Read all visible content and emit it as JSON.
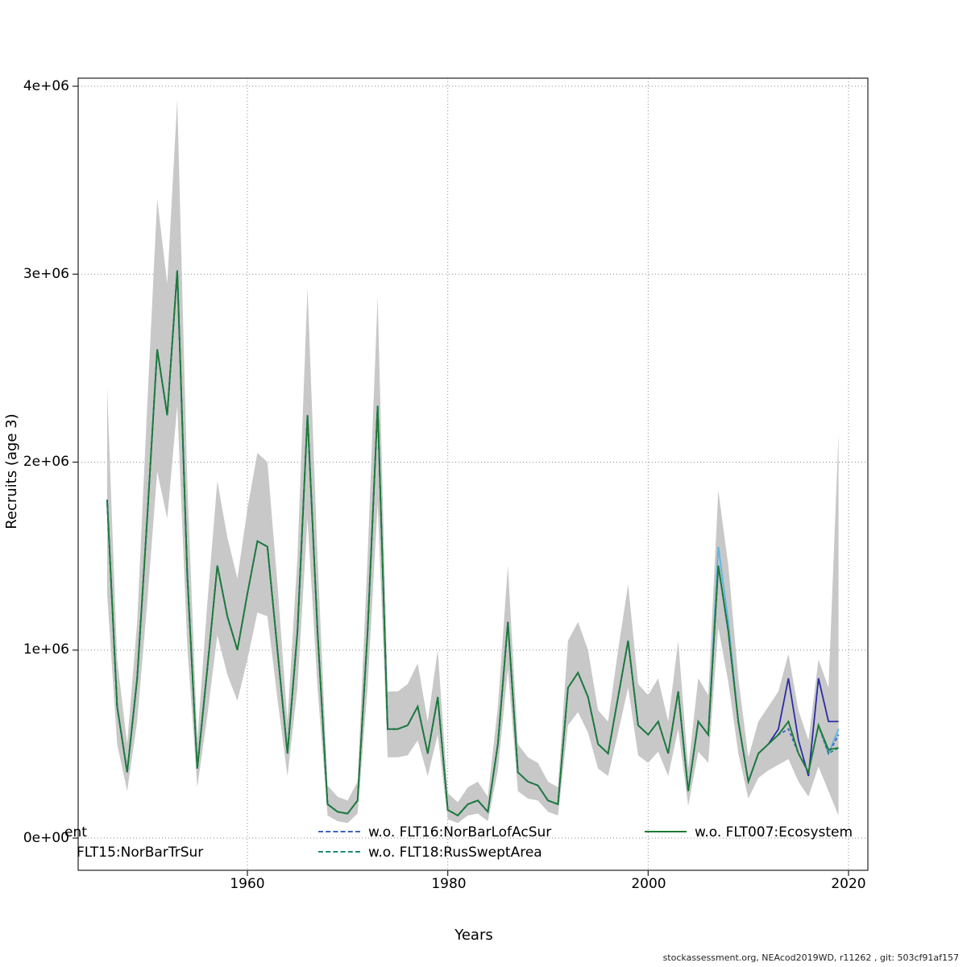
{
  "footer": {
    "text": "stockassessment.org, NEAcod2019WD, r11262 , git: 503cf91af157"
  },
  "chart_data": {
    "type": "line",
    "title": "",
    "xlabel": "Years",
    "ylabel": "Recruits (age 3)",
    "x_ticks": [
      1960,
      1980,
      2000,
      2020
    ],
    "x_tick_labels": [
      "1960",
      "1980",
      "2000",
      "2020"
    ],
    "y_tick_values": [
      4,
      3,
      2,
      1,
      0
    ],
    "y_tick_labels": [
      "4e+06",
      "3e+06",
      "2e+06",
      "1e+06",
      "0e+00"
    ],
    "value_scale": 1000000,
    "xlim": [
      1943,
      2022
    ],
    "ylim": [
      0,
      4.2
    ],
    "grid": true,
    "band_color": "#c8c8c8",
    "years": [
      1946,
      1947,
      1948,
      1949,
      1950,
      1951,
      1952,
      1953,
      1954,
      1955,
      1956,
      1957,
      1958,
      1959,
      1960,
      1961,
      1962,
      1963,
      1964,
      1965,
      1966,
      1967,
      1968,
      1969,
      1970,
      1971,
      1972,
      1973,
      1974,
      1975,
      1976,
      1977,
      1978,
      1979,
      1980,
      1981,
      1982,
      1983,
      1984,
      1985,
      1986,
      1987,
      1988,
      1989,
      1990,
      1991,
      1992,
      1993,
      1994,
      1995,
      1996,
      1997,
      1998,
      1999,
      2000,
      2001,
      2002,
      2003,
      2004,
      2005,
      2006,
      2007,
      2008,
      2009,
      2010,
      2011,
      2012,
      2013,
      2014,
      2015,
      2016,
      2017,
      2018,
      2019
    ],
    "values_base": [
      1.8,
      0.7,
      0.35,
      0.85,
      1.7,
      2.6,
      2.25,
      3.02,
      1.4,
      0.37,
      0.9,
      1.45,
      1.18,
      1.0,
      1.3,
      1.58,
      1.55,
      1.0,
      0.45,
      1.1,
      2.25,
      1.1,
      0.18,
      0.14,
      0.13,
      0.2,
      1.1,
      2.3,
      0.58,
      0.58,
      0.6,
      0.7,
      0.45,
      0.75,
      0.15,
      0.12,
      0.18,
      0.2,
      0.14,
      0.5,
      1.15,
      0.35,
      0.3,
      0.28,
      0.2,
      0.18,
      0.8,
      0.88,
      0.75,
      0.5,
      0.45,
      0.75,
      1.05,
      0.6,
      0.55,
      0.62,
      0.45,
      0.78,
      0.25,
      0.62,
      0.55,
      1.45,
      1.1,
      0.62,
      0.3,
      0.45,
      0.5,
      0.55,
      0.62,
      0.45,
      0.35,
      0.6,
      0.45,
      0.5
    ],
    "band_upper": [
      2.4,
      0.95,
      0.5,
      1.15,
      2.3,
      3.4,
      2.95,
      3.93,
      1.9,
      0.52,
      1.25,
      1.9,
      1.6,
      1.38,
      1.75,
      2.05,
      2.0,
      1.35,
      0.62,
      1.5,
      2.93,
      1.5,
      0.28,
      0.22,
      0.2,
      0.3,
      1.5,
      2.88,
      0.78,
      0.78,
      0.82,
      0.93,
      0.62,
      1.0,
      0.24,
      0.19,
      0.27,
      0.3,
      0.22,
      0.7,
      1.45,
      0.5,
      0.43,
      0.4,
      0.3,
      0.27,
      1.05,
      1.15,
      1.0,
      0.68,
      0.62,
      1.0,
      1.35,
      0.82,
      0.76,
      0.85,
      0.62,
      1.05,
      0.37,
      0.85,
      0.76,
      1.85,
      1.45,
      0.85,
      0.43,
      0.62,
      0.7,
      0.78,
      0.98,
      0.68,
      0.52,
      0.95,
      0.8,
      2.15
    ],
    "band_lower": [
      1.3,
      0.5,
      0.25,
      0.62,
      1.25,
      1.95,
      1.7,
      2.3,
      1.02,
      0.27,
      0.65,
      1.08,
      0.87,
      0.73,
      0.95,
      1.2,
      1.18,
      0.74,
      0.33,
      0.8,
      1.7,
      0.8,
      0.12,
      0.09,
      0.08,
      0.13,
      0.8,
      1.78,
      0.43,
      0.43,
      0.44,
      0.52,
      0.33,
      0.55,
      0.1,
      0.08,
      0.12,
      0.13,
      0.09,
      0.36,
      0.9,
      0.25,
      0.21,
      0.2,
      0.14,
      0.12,
      0.6,
      0.67,
      0.56,
      0.37,
      0.33,
      0.56,
      0.8,
      0.44,
      0.4,
      0.46,
      0.33,
      0.58,
      0.17,
      0.46,
      0.4,
      1.12,
      0.83,
      0.45,
      0.21,
      0.32,
      0.36,
      0.39,
      0.42,
      0.3,
      0.22,
      0.38,
      0.25,
      0.12
    ],
    "series": [
      {
        "name": "ent",
        "color": "#2b2ba6",
        "dash": false,
        "overrides": {
          "2013": 0.58,
          "2014": 0.85,
          "2015": 0.52,
          "2016": 0.33,
          "2017": 0.85,
          "2018": 0.62,
          "2019": 0.62
        }
      },
      {
        "name": "FLT15:NorBarTrSur",
        "color": "#5ab4e5",
        "dash": false,
        "overrides": {
          "2007": 1.55,
          "2008": 1.15,
          "2019": 0.58
        }
      },
      {
        "name": "w.o. FLT16:NorBarLofAcSur",
        "color": "#3c64c0",
        "dash": true,
        "overrides": {
          "2014": 0.58,
          "2019": 0.55
        }
      },
      {
        "name": "w.o. FLT18:RusSweptArea",
        "color": "#1e8878",
        "dash": true,
        "overrides": {
          "2019": 0.48
        }
      },
      {
        "name": "w.o. FLT007:Ecosystem",
        "color": "#1d7a33",
        "dash": false,
        "overrides": {
          "2018": 0.47,
          "2019": 0.48
        }
      }
    ]
  }
}
